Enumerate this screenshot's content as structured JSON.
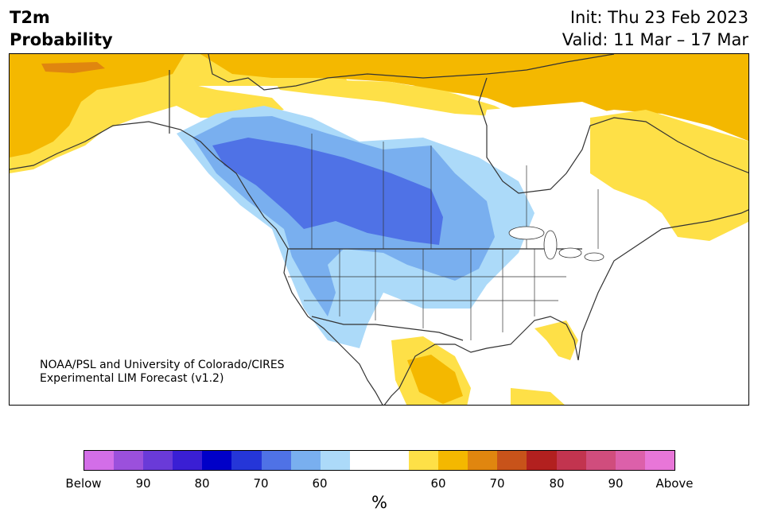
{
  "header": {
    "title_line1": "T2m",
    "title_line2": "Probability",
    "init": "Init: Thu 23 Feb 2023",
    "valid": "Valid: 11 Mar – 17 Mar"
  },
  "credit": {
    "line1": "NOAA/PSL and University of Colorado/CIRES",
    "line2": "Experimental LIM Forecast (v1.2)"
  },
  "colorbar": {
    "colors": [
      "#d36ee8",
      "#9b50dc",
      "#6a3ad8",
      "#3a1fd4",
      "#0000c8",
      "#2536d8",
      "#4f72e6",
      "#79afef",
      "#acdaf9",
      "#ffffff",
      "#ffffff",
      "#fee047",
      "#f4b800",
      "#e0860f",
      "#c8531a",
      "#b2201f",
      "#c2344f",
      "#d04d7d",
      "#dc60aa",
      "#e876d8"
    ],
    "labels": [
      "Below",
      "90",
      "80",
      "70",
      "60",
      "60",
      "70",
      "80",
      "90",
      "Above"
    ],
    "unit": "%"
  },
  "map": {
    "colors": {
      "above_60": "#fee047",
      "above_70": "#f4b800",
      "above_80": "#e0860f",
      "below_60": "#acdaf9",
      "below_70": "#79afef",
      "below_80": "#4f72e6",
      "borders": "#333333"
    }
  }
}
